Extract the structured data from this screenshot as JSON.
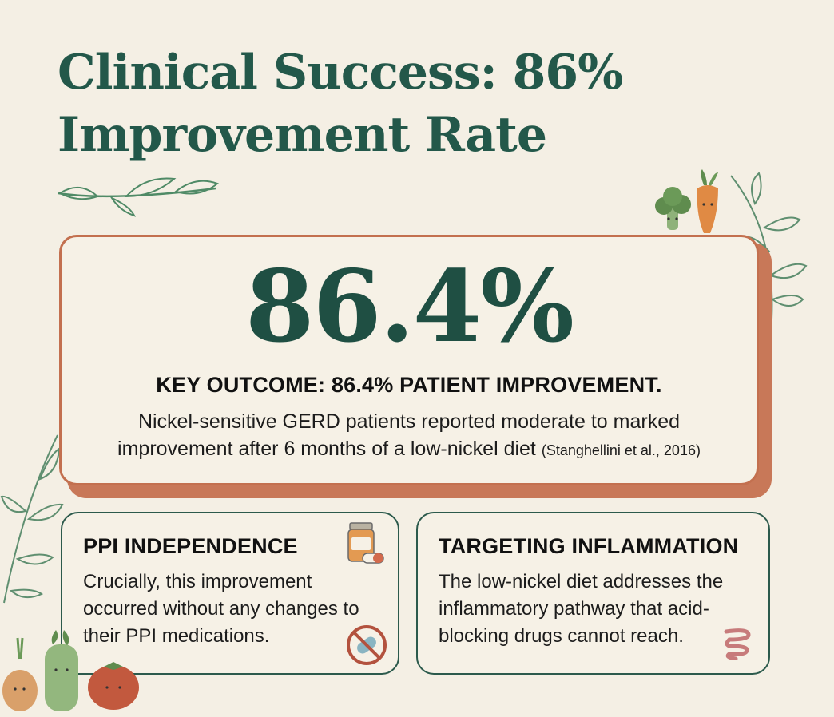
{
  "title": {
    "line1": "Clinical Success: 86%",
    "line2": "Improvement Rate"
  },
  "main_card": {
    "stat": "86.4%",
    "key_outcome": "KEY OUTCOME: 86.4% PATIENT IMPROVEMENT.",
    "body_line1": "Nickel-sensitive GERD patients reported moderate to marked",
    "body_line2": "improvement after 6 months of a low-nickel diet",
    "citation": "(Stanghellini et al., 2016)"
  },
  "cards": [
    {
      "heading": "PPI INDEPENDENCE",
      "body": "Crucially, this improvement occurred without any changes to their PPI medications.",
      "icons": [
        "pill-bottle-icon",
        "no-pill-icon"
      ]
    },
    {
      "heading": "TARGETING INFLAMMATION",
      "body": "The low-nickel diet addresses the inflammatory pathway that acid-blocking drugs cannot reach.",
      "icons": [
        "intestine-icon"
      ]
    }
  ],
  "decorations": [
    "leaf-sprig-icon",
    "broccoli-icon",
    "carrot-icon",
    "onion-icon",
    "celery-icon",
    "tomato-icon"
  ],
  "colors": {
    "background": "#f4efe4",
    "title": "#23584a",
    "accent_border": "#c3704f",
    "card_border": "#2c5a4c"
  }
}
